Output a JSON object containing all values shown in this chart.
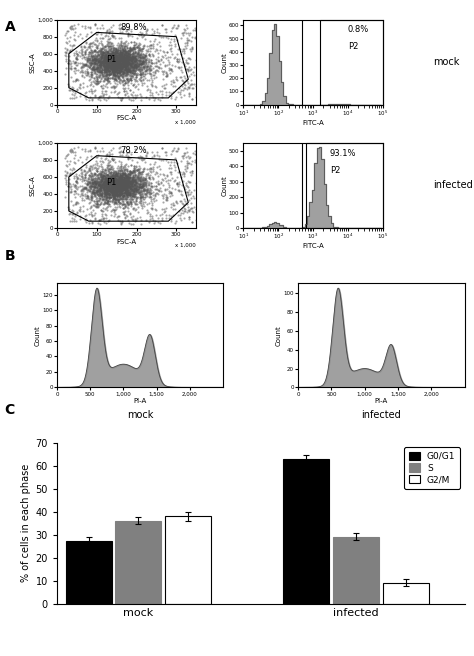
{
  "panel_A_label": "A",
  "panel_B_label": "B",
  "panel_C_label": "C",
  "scatter_mock_pct": "89.8%",
  "scatter_infected_pct": "78.2%",
  "fitc_mock_pct": "0.8%",
  "fitc_infected_pct": "93.1%",
  "mock_label": "mock",
  "infected_label": "infected",
  "p1_label": "P1",
  "p2_label": "P2",
  "fsc_xlabel": "FSC-A",
  "fitc_xlabel": "FITC-A",
  "pia_xlabel": "PI-A",
  "count_ylabel": "Count",
  "ssc_ylabel": "SSC-A",
  "bar_groups": [
    "mock",
    "infected"
  ],
  "bar_categories": [
    "G0/G1",
    "S",
    "G2/M"
  ],
  "bar_colors": [
    "#000000",
    "#808080",
    "#ffffff"
  ],
  "bar_edgecolors": [
    "#000000",
    "#808080",
    "#000000"
  ],
  "mock_values": [
    27,
    36,
    38
  ],
  "infected_values": [
    63,
    29,
    9
  ],
  "mock_errors": [
    2,
    1.5,
    2
  ],
  "infected_errors": [
    1.5,
    1.5,
    1.5
  ],
  "ylabel_C": "% of cells in each phase",
  "ylim_C": [
    0,
    70
  ],
  "yticks_C": [
    0,
    10,
    20,
    30,
    40,
    50,
    60,
    70
  ],
  "background_color": "#ffffff",
  "fig_width": 4.74,
  "fig_height": 6.56,
  "dpi": 100
}
